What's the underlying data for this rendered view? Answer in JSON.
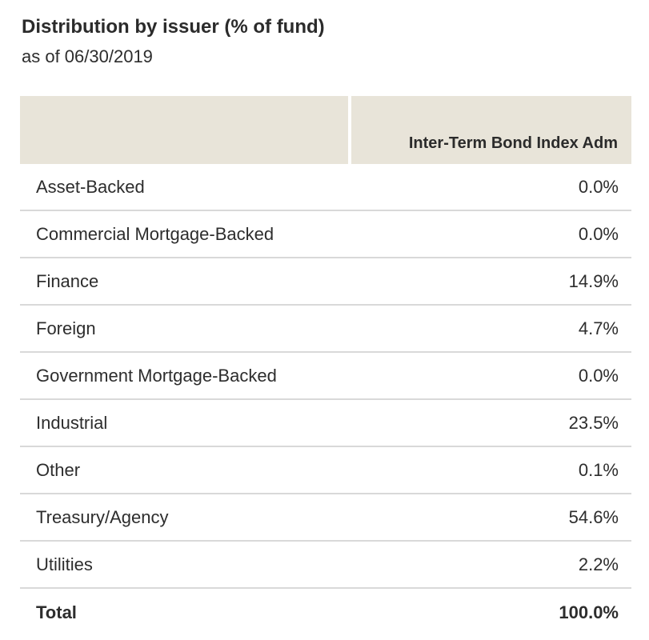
{
  "page": {
    "title": "Distribution by issuer (% of fund)",
    "as_of": "as of 06/30/2019"
  },
  "table": {
    "column_header": "Inter-Term Bond Index Adm",
    "rows": [
      {
        "label": "Asset-Backed",
        "value": "0.0%"
      },
      {
        "label": "Commercial Mortgage-Backed",
        "value": "0.0%"
      },
      {
        "label": "Finance",
        "value": "14.9%"
      },
      {
        "label": "Foreign",
        "value": "4.7%"
      },
      {
        "label": "Government Mortgage-Backed",
        "value": "0.0%"
      },
      {
        "label": "Industrial",
        "value": "23.5%"
      },
      {
        "label": "Other",
        "value": "0.1%"
      },
      {
        "label": "Treasury/Agency",
        "value": "54.6%"
      },
      {
        "label": "Utilities",
        "value": "2.2%"
      }
    ],
    "total": {
      "label": "Total",
      "value": "100.0%"
    }
  },
  "colors": {
    "header_bg": "#e8e4d9",
    "separator": "#d9d9d9",
    "text": "#2d2d2d"
  },
  "chart_data": {
    "type": "table",
    "title": "Distribution by issuer (% of fund)",
    "subtitle": "as of 06/30/2019",
    "columns": [
      "",
      "Inter-Term Bond Index Adm"
    ],
    "categories": [
      "Asset-Backed",
      "Commercial Mortgage-Backed",
      "Finance",
      "Foreign",
      "Government Mortgage-Backed",
      "Industrial",
      "Other",
      "Treasury/Agency",
      "Utilities"
    ],
    "values": [
      0.0,
      0.0,
      14.9,
      4.7,
      0.0,
      23.5,
      0.1,
      54.6,
      2.2
    ],
    "total": 100.0,
    "unit": "%"
  }
}
